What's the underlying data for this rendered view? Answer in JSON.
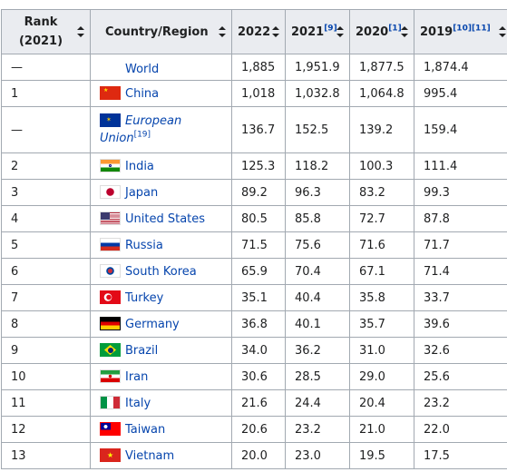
{
  "table": {
    "headers": {
      "rank": [
        "Rank",
        "(2021)"
      ],
      "country": "Country/Region",
      "y2022": "2022",
      "y2021": "2021",
      "y2021_ref": "[9]",
      "y2020": "2020",
      "y2020_ref": "[1]",
      "y2019": "2019",
      "y2019_ref": "[10][11]"
    },
    "rows": [
      {
        "rank": "—",
        "country": "World",
        "flag": "none",
        "v2022": "1,885",
        "v2021": "1,951.9",
        "v2020": "1,877.5",
        "v2019": "1,874.4"
      },
      {
        "rank": "1",
        "country": "China",
        "flag": "china",
        "v2022": "1,018",
        "v2021": "1,032.8",
        "v2020": "1,064.8",
        "v2019": "995.4"
      },
      {
        "rank": "—",
        "country": "European Union",
        "country_ref": "[19]",
        "flag": "eu",
        "v2022": "136.7",
        "v2021": "152.5",
        "v2020": "139.2",
        "v2019": "159.4"
      },
      {
        "rank": "2",
        "country": "India",
        "flag": "india",
        "v2022": "125.3",
        "v2021": "118.2",
        "v2020": "100.3",
        "v2019": "111.4"
      },
      {
        "rank": "3",
        "country": "Japan",
        "flag": "japan",
        "v2022": "89.2",
        "v2021": "96.3",
        "v2020": "83.2",
        "v2019": "99.3"
      },
      {
        "rank": "4",
        "country": "United States",
        "flag": "usa",
        "v2022": "80.5",
        "v2021": "85.8",
        "v2020": "72.7",
        "v2019": "87.8"
      },
      {
        "rank": "5",
        "country": "Russia",
        "flag": "russia",
        "v2022": "71.5",
        "v2021": "75.6",
        "v2020": "71.6",
        "v2019": "71.7"
      },
      {
        "rank": "6",
        "country": "South Korea",
        "flag": "south-korea",
        "v2022": "65.9",
        "v2021": "70.4",
        "v2020": "67.1",
        "v2019": "71.4"
      },
      {
        "rank": "7",
        "country": "Turkey",
        "flag": "turkey",
        "v2022": "35.1",
        "v2021": "40.4",
        "v2020": "35.8",
        "v2019": "33.7"
      },
      {
        "rank": "8",
        "country": "Germany",
        "flag": "germany",
        "v2022": "36.8",
        "v2021": "40.1",
        "v2020": "35.7",
        "v2019": "39.6"
      },
      {
        "rank": "9",
        "country": "Brazil",
        "flag": "brazil",
        "v2022": "34.0",
        "v2021": "36.2",
        "v2020": "31.0",
        "v2019": "32.6"
      },
      {
        "rank": "10",
        "country": "Iran",
        "flag": "iran",
        "v2022": "30.6",
        "v2021": "28.5",
        "v2020": "29.0",
        "v2019": "25.6"
      },
      {
        "rank": "11",
        "country": "Italy",
        "flag": "italy",
        "v2022": "21.6",
        "v2021": "24.4",
        "v2020": "20.4",
        "v2019": "23.2"
      },
      {
        "rank": "12",
        "country": "Taiwan",
        "flag": "taiwan",
        "v2022": "20.6",
        "v2021": "23.2",
        "v2020": "21.0",
        "v2019": "22.0"
      },
      {
        "rank": "13",
        "country": "Vietnam",
        "flag": "vietnam",
        "v2022": "20.0",
        "v2021": "23.0",
        "v2020": "19.5",
        "v2019": "17.5"
      }
    ]
  },
  "colors": {
    "header_bg": "#eaecf0",
    "border": "#a2a9b1",
    "link": "#0645ad",
    "text": "#202122"
  }
}
